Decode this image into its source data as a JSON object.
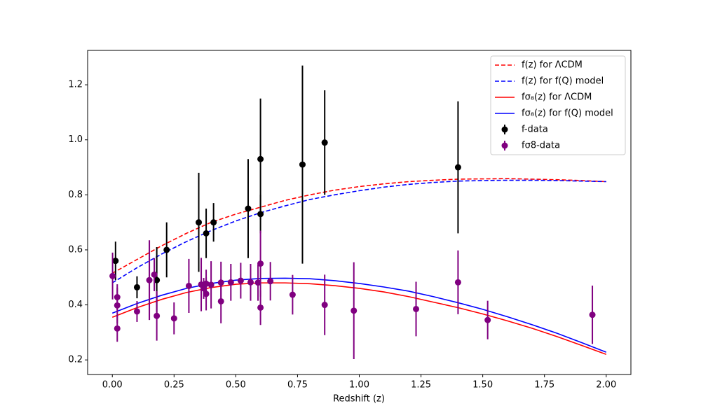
{
  "chart_data": {
    "type": "line",
    "x_label": "Redshift (z)",
    "xlim": [
      -0.1,
      2.1
    ],
    "ylim": [
      0.147,
      1.325
    ],
    "xticks": [
      {
        "value": 0,
        "label": "0.00"
      },
      {
        "value": 0.25,
        "label": "0.25"
      },
      {
        "value": 0.5,
        "label": "0.50"
      },
      {
        "value": 0.75,
        "label": "0.75"
      },
      {
        "value": 1,
        "label": "1.00"
      },
      {
        "value": 1.25,
        "label": "1.25"
      },
      {
        "value": 1.5,
        "label": "1.50"
      },
      {
        "value": 1.75,
        "label": "1.75"
      },
      {
        "value": 2,
        "label": "2.00"
      }
    ],
    "yticks": [
      0.2,
      0.4,
      0.6,
      0.8,
      {
        "value": 1,
        "label": "1.0"
      },
      1.2
    ],
    "legend": "upper right",
    "x": [
      0,
      0.1,
      0.2,
      0.3,
      0.4,
      0.5,
      0.6,
      0.7,
      0.8,
      0.9,
      1.0,
      1.1,
      1.2,
      1.3,
      1.4,
      1.5,
      1.6,
      1.7,
      1.8,
      1.9,
      2.0
    ],
    "series": [
      {
        "name": "f(z) for ΛCDM",
        "color": "#ff0000",
        "style": "dashed",
        "values": [
          0.515,
          0.565,
          0.615,
          0.66,
          0.7,
          0.73,
          0.755,
          0.78,
          0.8,
          0.817,
          0.83,
          0.84,
          0.848,
          0.853,
          0.857,
          0.858,
          0.859,
          0.857,
          0.855,
          0.852,
          0.848
        ]
      },
      {
        "name": "f(z) for f(Q) model",
        "color": "#0000ff",
        "style": "dashed",
        "values": [
          0.48,
          0.535,
          0.585,
          0.63,
          0.67,
          0.705,
          0.735,
          0.76,
          0.783,
          0.8,
          0.815,
          0.828,
          0.838,
          0.845,
          0.85,
          0.852,
          0.853,
          0.853,
          0.852,
          0.85,
          0.848
        ]
      },
      {
        "name": "fσ₈(z) for ΛCDM",
        "color": "#ff0000",
        "style": "solid",
        "values": [
          0.355,
          0.39,
          0.42,
          0.445,
          0.463,
          0.475,
          0.48,
          0.48,
          0.477,
          0.47,
          0.46,
          0.447,
          0.43,
          0.41,
          0.39,
          0.367,
          0.342,
          0.315,
          0.285,
          0.253,
          0.22
        ]
      },
      {
        "name": "fσ₈(z) for f(Q) model",
        "color": "#0000ff",
        "style": "solid",
        "values": [
          0.37,
          0.405,
          0.435,
          0.46,
          0.478,
          0.49,
          0.496,
          0.497,
          0.495,
          0.488,
          0.478,
          0.465,
          0.45,
          0.43,
          0.408,
          0.384,
          0.357,
          0.328,
          0.297,
          0.263,
          0.228
        ]
      },
      {
        "name": "f-data",
        "color": "#000000",
        "style": "errorbar",
        "x": [
          0.013,
          0.1,
          0.18,
          0.22,
          0.35,
          0.38,
          0.41,
          0.55,
          0.6,
          0.6,
          0.77,
          0.86,
          1.4
        ],
        "values": [
          0.56,
          0.464,
          0.49,
          0.6,
          0.7,
          0.66,
          0.7,
          0.75,
          0.93,
          0.73,
          0.91,
          0.99,
          0.9
        ],
        "errors": [
          0.07,
          0.04,
          0.12,
          0.1,
          0.18,
          0.09,
          0.07,
          0.18,
          0.22,
          0.07,
          0.36,
          0.19,
          0.24
        ]
      },
      {
        "name": "fσ8-data",
        "color": "#800080",
        "style": "errorbar",
        "x": [
          0.001,
          0.02,
          0.02,
          0.02,
          0.1,
          0.15,
          0.17,
          0.18,
          0.25,
          0.31,
          0.36,
          0.37,
          0.38,
          0.38,
          0.4,
          0.44,
          0.44,
          0.48,
          0.52,
          0.56,
          0.59,
          0.6,
          0.6,
          0.64,
          0.73,
          0.86,
          0.978,
          1.23,
          1.4,
          1.52,
          1.944
        ],
        "values": [
          0.505,
          0.428,
          0.398,
          0.314,
          0.376,
          0.49,
          0.51,
          0.36,
          0.351,
          0.469,
          0.474,
          0.46,
          0.477,
          0.44,
          0.473,
          0.413,
          0.481,
          0.482,
          0.488,
          0.482,
          0.481,
          0.55,
          0.39,
          0.486,
          0.437,
          0.4,
          0.379,
          0.385,
          0.482,
          0.345,
          0.364
        ],
        "errors": [
          0.085,
          0.047,
          0.065,
          0.048,
          0.038,
          0.145,
          0.06,
          0.09,
          0.058,
          0.098,
          0.097,
          0.038,
          0.051,
          0.06,
          0.086,
          0.08,
          0.076,
          0.067,
          0.065,
          0.067,
          0.066,
          0.12,
          0.063,
          0.07,
          0.072,
          0.11,
          0.176,
          0.099,
          0.116,
          0.07,
          0.106
        ]
      }
    ]
  }
}
